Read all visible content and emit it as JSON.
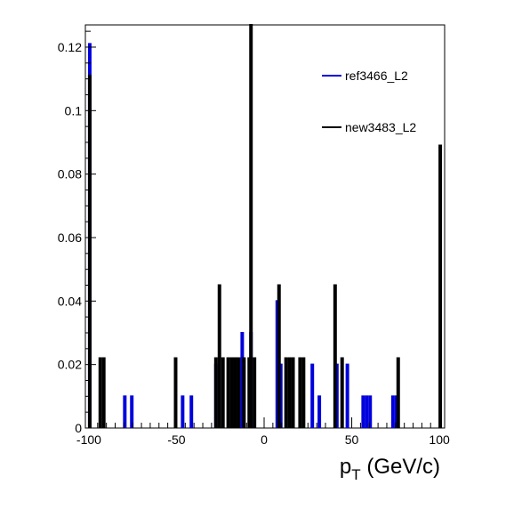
{
  "chart_data": {
    "type": "histogram",
    "title": "",
    "xlabel": "p",
    "xlabel_subscript": "T",
    "xlabel_unit": " (GeV/c)",
    "ylabel": "",
    "xlim": [
      -102,
      103
    ],
    "ylim": [
      0,
      0.127
    ],
    "bin_width": 1,
    "x_ticks": [
      -100,
      -50,
      0,
      50,
      100
    ],
    "x_tick_labels": [
      "-100",
      "-50",
      "0",
      "50",
      "100"
    ],
    "y_ticks": [
      0,
      0.02,
      0.04,
      0.06,
      0.08,
      0.1,
      0.12
    ],
    "y_tick_labels": [
      "0",
      "0.02",
      "0.04",
      "0.06",
      "0.08",
      "0.1",
      "0.12"
    ],
    "grid": false,
    "legend_position": "top-right",
    "series": [
      {
        "name": "ref3466_L2",
        "color": "#0000dd",
        "bins": [
          [
            -100,
            0.121
          ],
          [
            -80,
            0.01
          ],
          [
            -76,
            0.01
          ],
          [
            -47,
            0.01
          ],
          [
            -42,
            0.01
          ],
          [
            -28,
            0.02
          ],
          [
            -13,
            0.03
          ],
          [
            -8,
            0.03
          ],
          [
            7,
            0.04
          ],
          [
            9,
            0.02
          ],
          [
            27,
            0.02
          ],
          [
            31,
            0.01
          ],
          [
            41,
            0.02
          ],
          [
            47,
            0.02
          ],
          [
            56,
            0.01
          ],
          [
            58,
            0.01
          ],
          [
            60,
            0.01
          ],
          [
            73,
            0.01
          ],
          [
            75,
            0.01
          ]
        ]
      },
      {
        "name": "new3483_L2",
        "color": "#000000",
        "bins": [
          [
            -100,
            0.111
          ],
          [
            -94,
            0.022
          ],
          [
            -92,
            0.022
          ],
          [
            -51,
            0.022
          ],
          [
            -28,
            0.022
          ],
          [
            -26,
            0.045
          ],
          [
            -24,
            0.022
          ],
          [
            -21,
            0.022
          ],
          [
            -19,
            0.022
          ],
          [
            -17,
            0.022
          ],
          [
            -15,
            0.022
          ],
          [
            -12,
            0.022
          ],
          [
            -9,
            0.022
          ],
          [
            -8,
            0.127
          ],
          [
            -6,
            0.022
          ],
          [
            8,
            0.045
          ],
          [
            12,
            0.022
          ],
          [
            14,
            0.022
          ],
          [
            16,
            0.022
          ],
          [
            20,
            0.022
          ],
          [
            22,
            0.022
          ],
          [
            40,
            0.045
          ],
          [
            44,
            0.022
          ],
          [
            76,
            0.022
          ],
          [
            100,
            0.089
          ]
        ]
      }
    ]
  }
}
